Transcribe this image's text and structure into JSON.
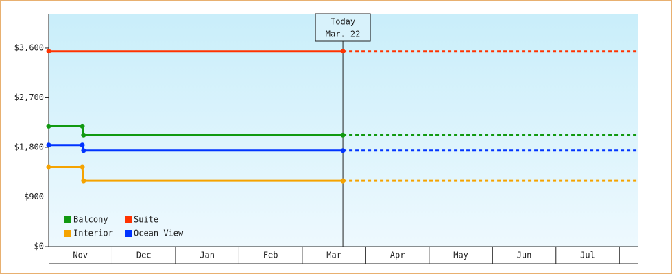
{
  "chart_data": {
    "type": "step-line",
    "xlim": [
      0,
      9.3
    ],
    "xticks": [
      {
        "value": 0.5,
        "label": "Nov"
      },
      {
        "value": 1.5,
        "label": "Dec"
      },
      {
        "value": 2.5,
        "label": "Jan"
      },
      {
        "value": 3.5,
        "label": "Feb"
      },
      {
        "value": 4.5,
        "label": "Mar"
      },
      {
        "value": 5.5,
        "label": "Apr"
      },
      {
        "value": 6.5,
        "label": "May"
      },
      {
        "value": 7.5,
        "label": "Jun"
      },
      {
        "value": 8.5,
        "label": "Jul"
      }
    ],
    "ylim": [
      0,
      4220
    ],
    "yticks": [
      {
        "value": 0,
        "label": "$0"
      },
      {
        "value": 900,
        "label": "$900"
      },
      {
        "value": 1800,
        "label": "$1,800"
      },
      {
        "value": 2700,
        "label": "$2,700"
      },
      {
        "value": 3600,
        "label": "$3,600"
      }
    ],
    "today": {
      "x": 4.64,
      "label": [
        "Today",
        "Mar. 22"
      ]
    },
    "series": [
      {
        "name": "Balcony",
        "color": "#119911",
        "x": [
          0,
          0.53,
          0.55,
          4.64
        ],
        "values": [
          2180,
          2180,
          2020,
          2020
        ]
      },
      {
        "name": "Suite",
        "color": "#ff3300",
        "x": [
          0,
          4.64
        ],
        "values": [
          3540,
          3540
        ]
      },
      {
        "name": "Interior",
        "color": "#f5a300",
        "x": [
          0,
          0.53,
          0.55,
          4.64
        ],
        "values": [
          1440,
          1440,
          1190,
          1190
        ]
      },
      {
        "name": "Ocean View",
        "color": "#0033ff",
        "x": [
          0,
          0.53,
          0.55,
          4.64
        ],
        "values": [
          1840,
          1840,
          1740,
          1740
        ]
      }
    ]
  }
}
